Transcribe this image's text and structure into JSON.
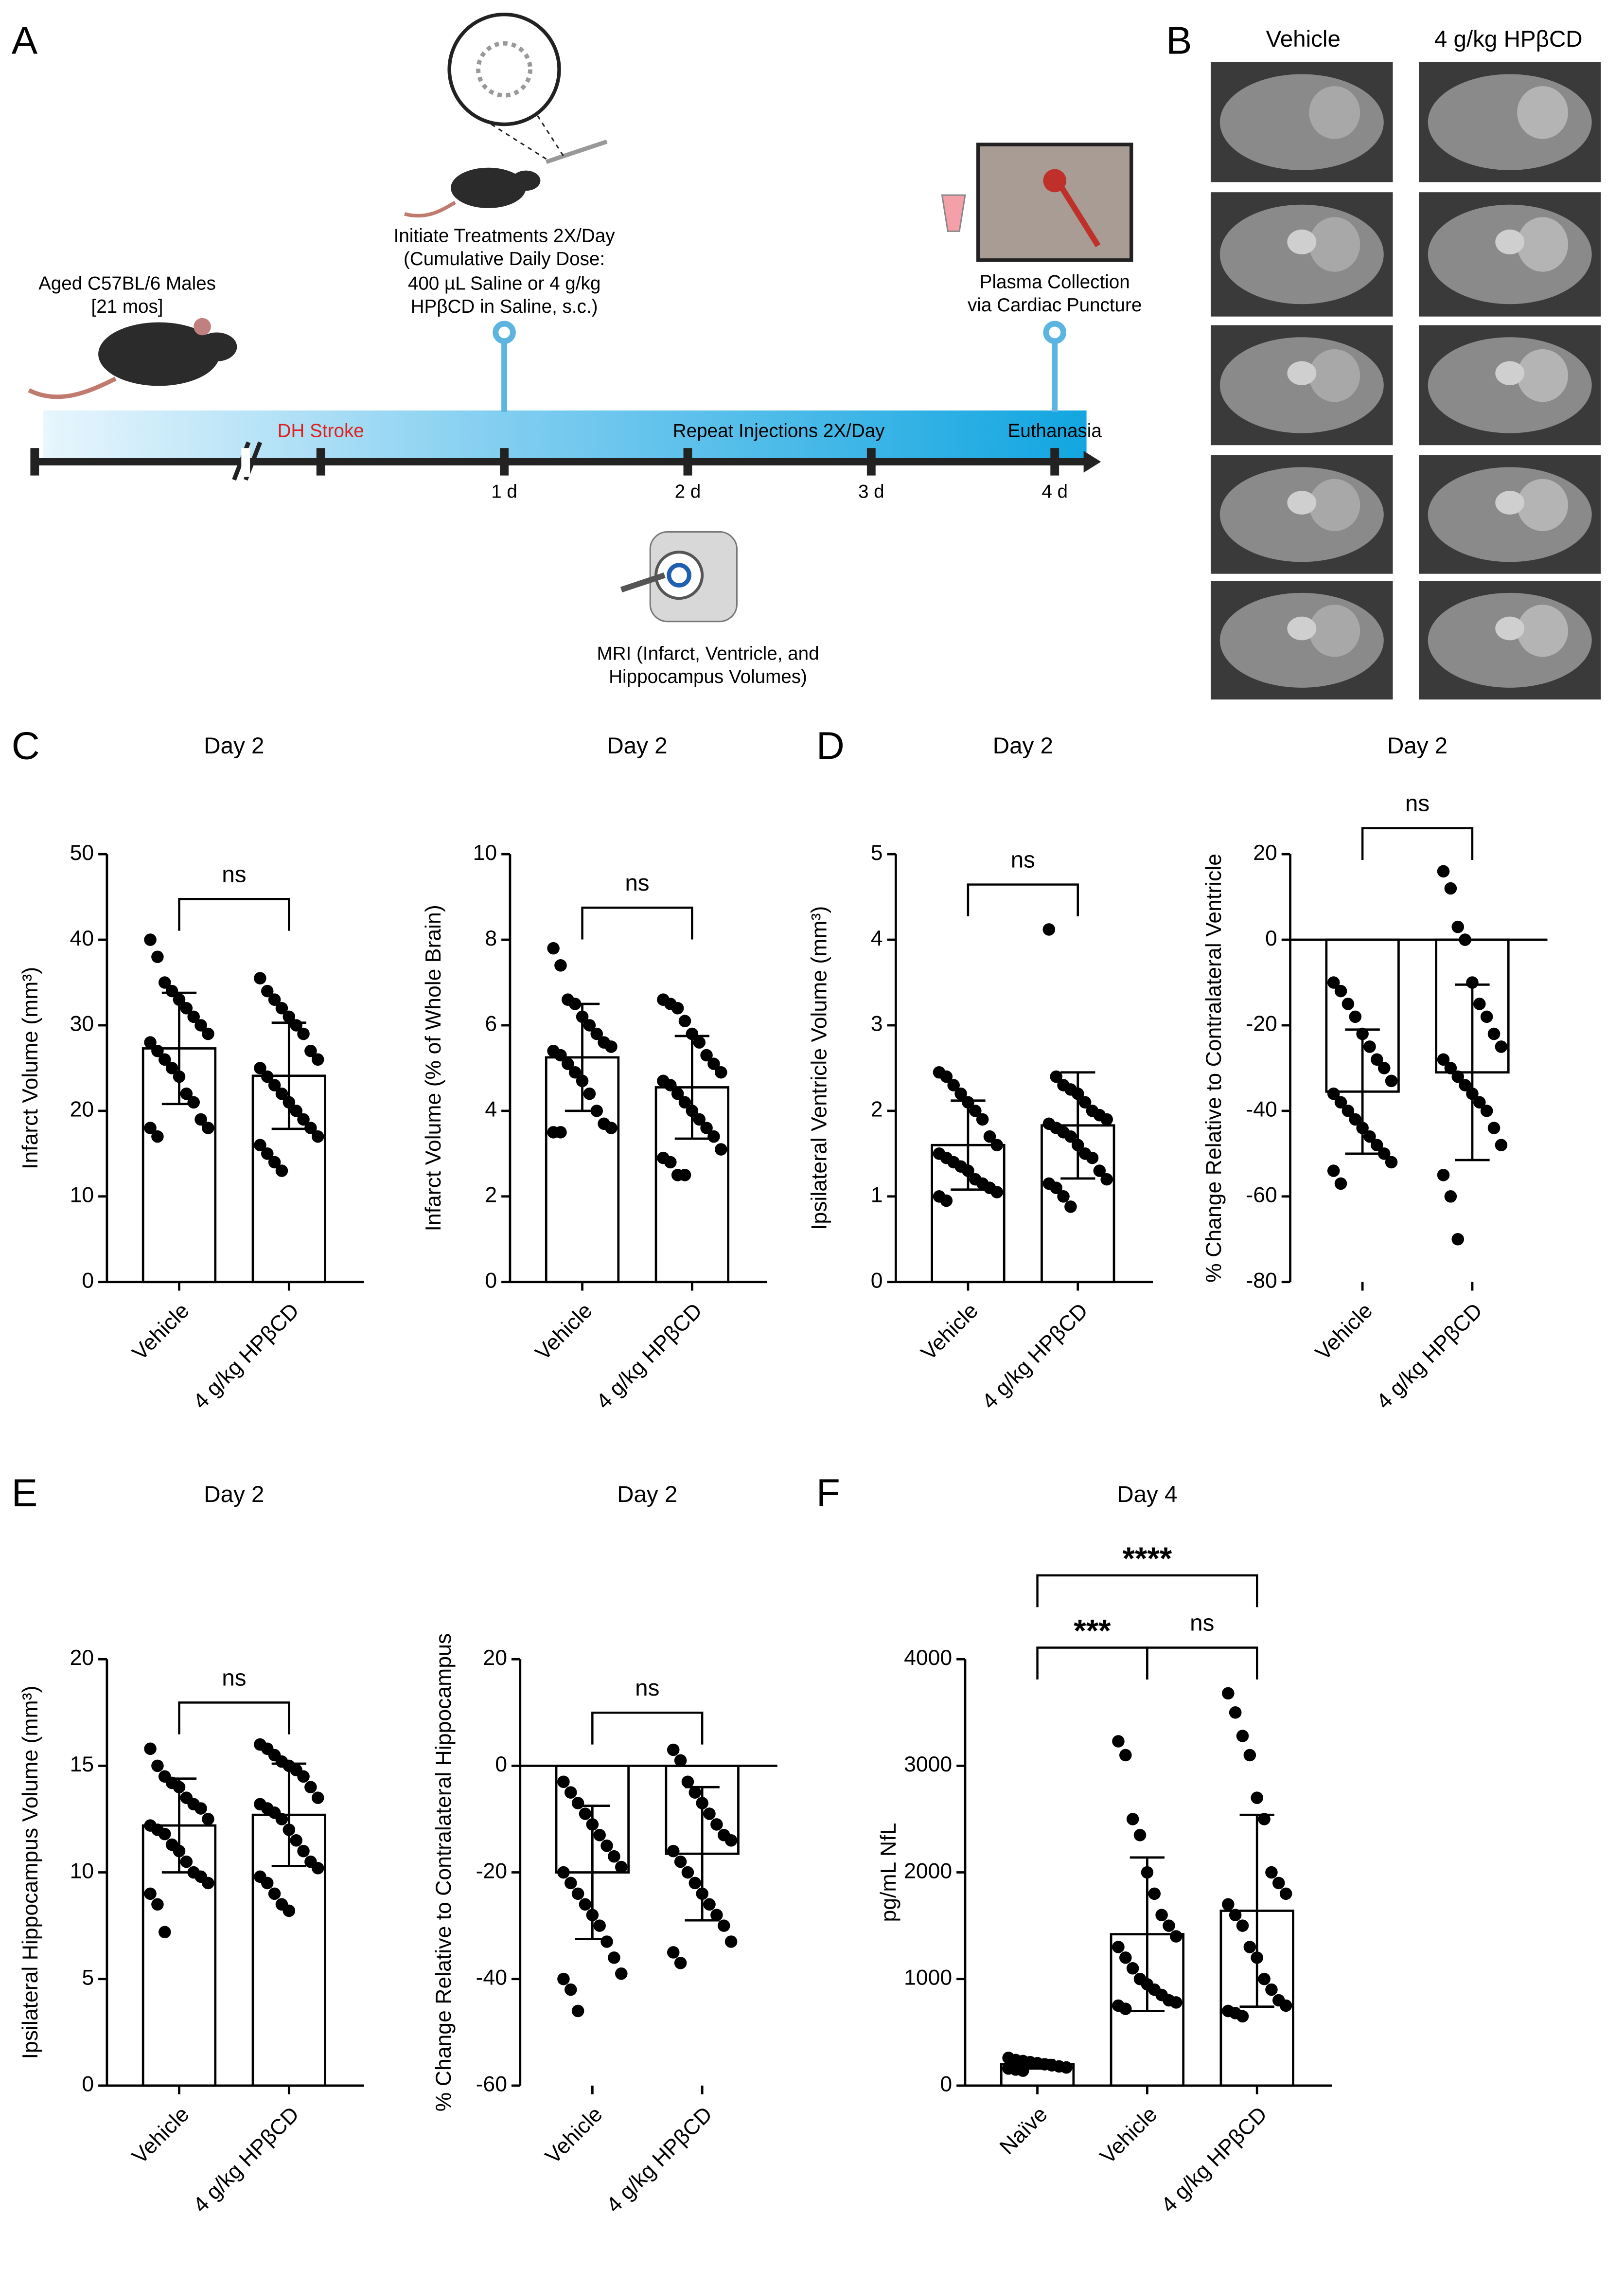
{
  "panels": {
    "labels": [
      "A",
      "B",
      "C",
      "D",
      "E",
      "F"
    ]
  },
  "panel_a": {
    "subject": [
      "Aged C57BL/6 Males",
      "[21 mos]"
    ],
    "treatment": [
      "Initiate Treatments 2X/Day",
      "(Cumulative Daily Dose:",
      "400 µL Saline or 4 g/kg",
      "HPβCD in Saline, s.c.)"
    ],
    "collection": [
      "Plasma Collection",
      "via Cardiac Puncture"
    ],
    "stroke": "DH Stroke",
    "repeat": "Repeat Injections 2X/Day",
    "euthanasia": "Euthanasia",
    "days": [
      "1 d",
      "2 d",
      "3 d",
      "4 d"
    ],
    "mri": [
      "MRI (Infarct, Ventricle, and",
      "Hippocampus Volumes)"
    ]
  },
  "panel_b": {
    "columns": [
      "Vehicle",
      "4 g/kg HPβCD"
    ]
  },
  "chart_data": [
    {
      "type": "bar",
      "title": "Day 2",
      "ylabel": "Infarct Volume (mm³)",
      "categories": [
        "Vehicle",
        "4 g/kg HPβCD"
      ],
      "values": [
        27.3,
        24.1
      ],
      "errors": [
        6.5,
        6.2
      ],
      "points": [
        [
          40,
          38,
          35,
          34,
          33,
          32,
          31,
          30,
          29,
          28,
          27,
          26,
          25,
          24,
          22,
          21,
          19,
          18,
          18,
          17
        ],
        [
          35.5,
          34,
          33,
          32,
          31,
          30,
          29,
          27,
          26,
          25,
          24,
          23,
          22,
          21,
          20,
          19,
          18,
          17,
          16,
          15,
          14,
          13
        ]
      ],
      "ylim": [
        0,
        50
      ],
      "yticks": [
        0,
        10,
        20,
        30,
        40,
        50
      ],
      "annotations": [
        {
          "text": "ns",
          "from": 0,
          "to": 1
        }
      ]
    },
    {
      "type": "bar",
      "title": "Day 2",
      "ylabel": "Infarct Volume (% of Whole Brain)",
      "categories": [
        "Vehicle",
        "4 g/kg HPβCD"
      ],
      "values": [
        5.25,
        4.55
      ],
      "errors": [
        1.25,
        1.2
      ],
      "points": [
        [
          7.8,
          7.4,
          6.6,
          6.5,
          6.2,
          6.0,
          5.8,
          5.6,
          5.5,
          5.4,
          5.3,
          5.1,
          4.9,
          4.7,
          4.4,
          4.0,
          3.7,
          3.6,
          3.5,
          3.5
        ],
        [
          6.6,
          6.5,
          6.4,
          6.1,
          5.8,
          5.6,
          5.3,
          5.1,
          4.9,
          4.7,
          4.6,
          4.4,
          4.2,
          4.0,
          3.8,
          3.6,
          3.4,
          3.1,
          2.9,
          2.8,
          2.5,
          2.5
        ]
      ],
      "ylim": [
        0,
        10
      ],
      "yticks": [
        0,
        2,
        4,
        6,
        8,
        10
      ],
      "annotations": [
        {
          "text": "ns",
          "from": 0,
          "to": 1
        }
      ]
    },
    {
      "type": "bar",
      "title": "Day 2",
      "ylabel": "Ipsilateral Ventricle Volume (mm³)",
      "categories": [
        "Vehicle",
        "4 g/kg HPβCD"
      ],
      "values": [
        1.6,
        1.83
      ],
      "errors": [
        0.52,
        0.62
      ],
      "points": [
        [
          2.45,
          2.4,
          2.3,
          2.2,
          2.1,
          2.0,
          1.9,
          1.7,
          1.6,
          1.5,
          1.45,
          1.4,
          1.35,
          1.3,
          1.2,
          1.15,
          1.1,
          1.05,
          1.0,
          0.95
        ],
        [
          4.12,
          2.4,
          2.3,
          2.25,
          2.2,
          2.1,
          2.0,
          1.95,
          1.9,
          1.85,
          1.8,
          1.75,
          1.7,
          1.6,
          1.5,
          1.45,
          1.3,
          1.2,
          1.15,
          1.1,
          1.0,
          0.88
        ]
      ],
      "ylim": [
        0,
        5
      ],
      "yticks": [
        0,
        1,
        2,
        3,
        4,
        5
      ],
      "annotations": [
        {
          "text": "ns",
          "from": 0,
          "to": 1
        }
      ]
    },
    {
      "type": "bar",
      "title": "Day 2",
      "ylabel": "% Change Relative to Contralateral Ventricle",
      "categories": [
        "Vehicle",
        "4 g/kg HPβCD"
      ],
      "values": [
        -35.5,
        -31
      ],
      "errors": [
        14.5,
        20.5
      ],
      "points": [
        [
          -10,
          -12,
          -15,
          -18,
          -22,
          -25,
          -28,
          -30,
          -33,
          -36,
          -38,
          -40,
          -42,
          -44,
          -46,
          -48,
          -50,
          -52,
          -54,
          -57
        ],
        [
          16,
          12,
          3,
          0,
          -10,
          -15,
          -18,
          -22,
          -25,
          -28,
          -30,
          -32,
          -34,
          -36,
          -38,
          -40,
          -44,
          -48,
          -55,
          -60,
          -70
        ]
      ],
      "ylim": [
        -80,
        20
      ],
      "yticks": [
        -80,
        -60,
        -40,
        -20,
        0,
        20
      ],
      "annotations": [
        {
          "text": "ns",
          "from": 0,
          "to": 1
        }
      ]
    },
    {
      "type": "bar",
      "title": "Day 2",
      "ylabel": "Ipsilateral Hippocampus Volume (mm³)",
      "categories": [
        "Vehicle",
        "4 g/kg HPβCD"
      ],
      "values": [
        12.2,
        12.7
      ],
      "errors": [
        2.2,
        2.4
      ],
      "points": [
        [
          15.8,
          15,
          14.5,
          14.2,
          14,
          13.5,
          13.2,
          13,
          12.5,
          12.2,
          12,
          11.8,
          11.3,
          11,
          10.5,
          10,
          9.8,
          9.5,
          9,
          8.5,
          7.2
        ],
        [
          16,
          15.8,
          15.5,
          15.2,
          15,
          14.8,
          14.5,
          14,
          13.5,
          13.2,
          13,
          12.8,
          12.5,
          12,
          11.5,
          11,
          10.5,
          10.2,
          9.8,
          9.5,
          9,
          8.5,
          8.2
        ]
      ],
      "ylim": [
        0,
        20
      ],
      "yticks": [
        0,
        5,
        10,
        15,
        20
      ],
      "annotations": [
        {
          "text": "ns",
          "from": 0,
          "to": 1
        }
      ]
    },
    {
      "type": "bar",
      "title": "Day 2",
      "ylabel": "% Change Relative to Contralateral Hippocampus",
      "categories": [
        "Vehicle",
        "4 g/kg HPβCD"
      ],
      "values": [
        -20,
        -16.5
      ],
      "errors": [
        12.5,
        12.5
      ],
      "points": [
        [
          -3,
          -5,
          -7,
          -9,
          -11,
          -13,
          -15,
          -17,
          -19,
          -20,
          -22,
          -24,
          -26,
          -28,
          -30,
          -33,
          -36,
          -39,
          -40,
          -42,
          -46
        ],
        [
          3,
          1,
          -3,
          -5,
          -7,
          -9,
          -11,
          -13,
          -14,
          -16,
          -18,
          -20,
          -22,
          -24,
          -26,
          -28,
          -30,
          -33,
          -35,
          -37
        ]
      ],
      "ylim": [
        -60,
        20
      ],
      "yticks": [
        -60,
        -40,
        -20,
        0,
        20
      ],
      "annotations": [
        {
          "text": "ns",
          "from": 0,
          "to": 1
        }
      ]
    },
    {
      "type": "bar",
      "title": "Day 4",
      "ylabel": "pg/mL NfL",
      "categories": [
        "Naïve",
        "Vehicle",
        "4 g/kg HPβCD"
      ],
      "values": [
        200,
        1420,
        1640
      ],
      "errors": [
        40,
        720,
        900
      ],
      "points": [
        [
          260,
          240,
          230,
          220,
          210,
          200,
          190,
          180,
          170,
          160,
          150,
          140
        ],
        [
          3230,
          3100,
          2500,
          2350,
          2000,
          1800,
          1600,
          1500,
          1400,
          1300,
          1200,
          1100,
          1000,
          950,
          900,
          850,
          800,
          780,
          750,
          720
        ],
        [
          3680,
          3500,
          3280,
          3100,
          2700,
          2500,
          2000,
          1900,
          1800,
          1700,
          1600,
          1500,
          1300,
          1200,
          1000,
          900,
          800,
          750,
          700,
          680,
          650
        ]
      ],
      "ylim": [
        0,
        4000
      ],
      "yticks": [
        0,
        1000,
        2000,
        3000,
        4000
      ],
      "annotations": [
        {
          "text": "***",
          "from": 0,
          "to": 1
        },
        {
          "text": "ns",
          "from": 1,
          "to": 2
        },
        {
          "text": "****",
          "from": 0,
          "to": 2
        }
      ]
    }
  ]
}
